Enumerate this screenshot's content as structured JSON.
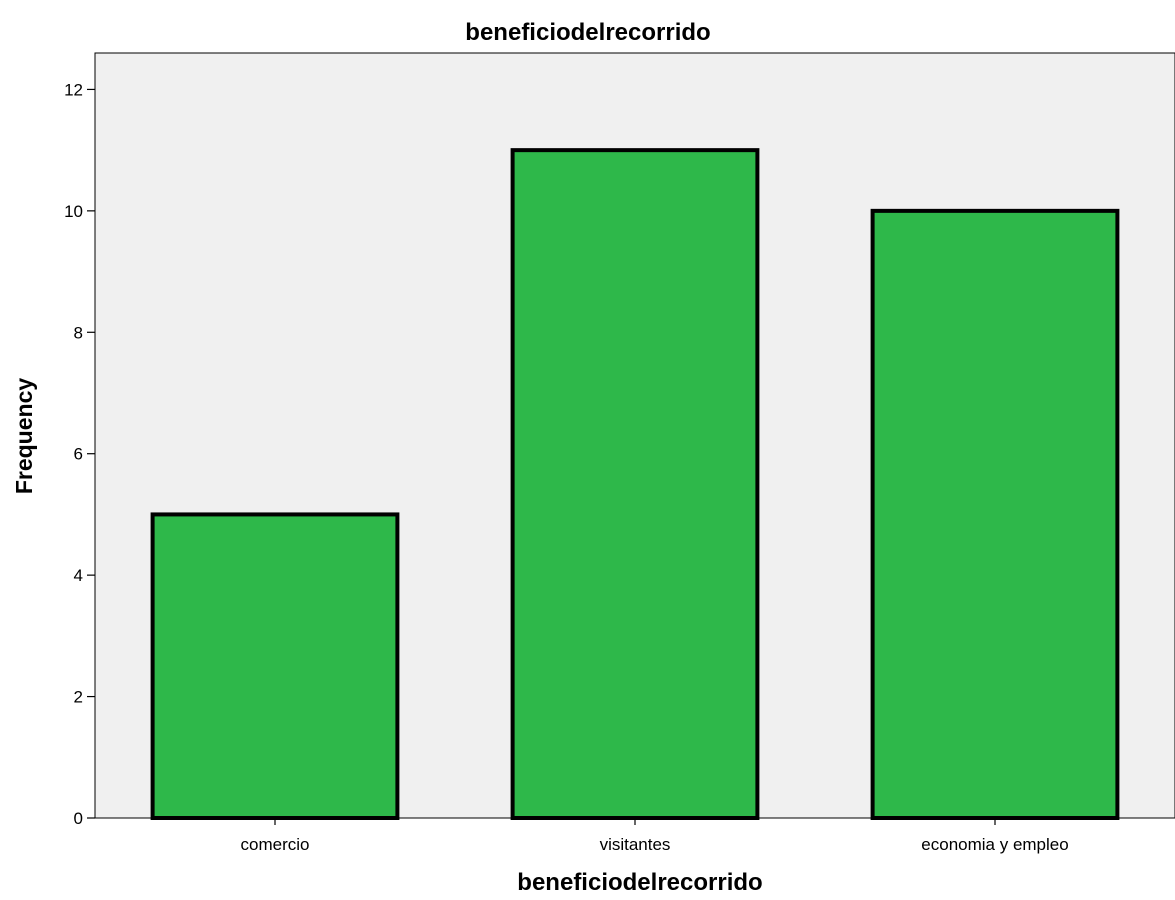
{
  "chart_data": {
    "type": "bar",
    "title": "beneficiodelrecorrido",
    "xlabel": "beneficiodelrecorrido",
    "ylabel": "Frequency",
    "categories": [
      "comercio",
      "visitantes",
      "economia y empleo"
    ],
    "values": [
      5,
      11,
      10
    ],
    "ylim": [
      0,
      12.6
    ],
    "yticks": [
      "0",
      "2",
      "4",
      "6",
      "8",
      "10",
      "12"
    ],
    "grid": false,
    "legend": "none",
    "colors": {
      "bar_fill": "#2EB84A",
      "bar_stroke": "#000000",
      "plot_background": "#F0F0F0",
      "axis": "#000000"
    }
  }
}
